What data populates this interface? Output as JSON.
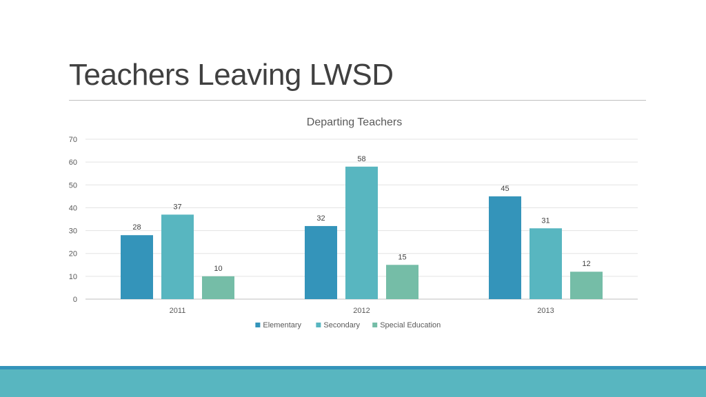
{
  "slide": {
    "title": "Teachers Leaving LWSD"
  },
  "colors": {
    "elementary": "#3494ba",
    "secondary": "#58b6c0",
    "special_education": "#75bda7",
    "footer_band": "#58b6c0",
    "footer_line": "#3494ba"
  },
  "chart_data": {
    "type": "bar",
    "title": "Departing Teachers",
    "xlabel": "",
    "ylabel": "",
    "categories": [
      "2011",
      "2012",
      "2013"
    ],
    "series": [
      {
        "name": "Elementary",
        "values": [
          28,
          32,
          45
        ]
      },
      {
        "name": "Secondary",
        "values": [
          37,
          58,
          31
        ]
      },
      {
        "name": "Special Education",
        "values": [
          10,
          15,
          12
        ]
      }
    ],
    "ylim": [
      0,
      70
    ],
    "yticks": [
      0,
      10,
      20,
      30,
      40,
      50,
      60,
      70
    ],
    "grid": true,
    "data_labels": true,
    "legend_position": "bottom"
  }
}
